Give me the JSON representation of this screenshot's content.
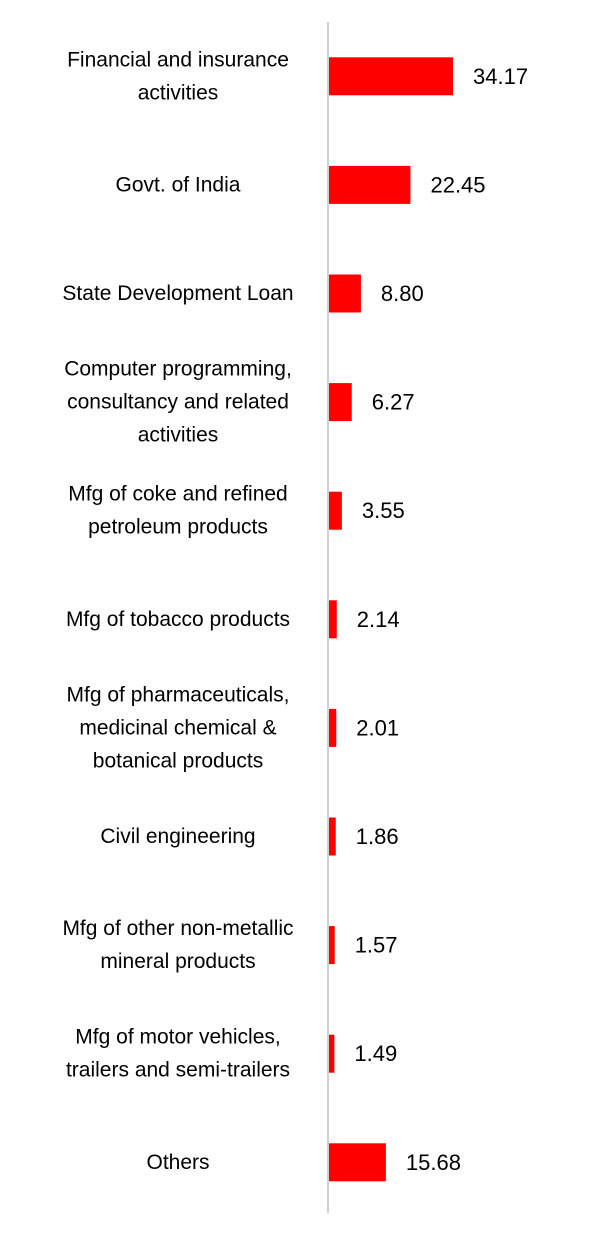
{
  "chart_data": {
    "type": "bar",
    "orientation": "horizontal",
    "categories": [
      [
        "Financial and insurance",
        "activities"
      ],
      [
        "Govt. of India"
      ],
      [
        "State Development Loan"
      ],
      [
        "Computer programming,",
        "consultancy and related",
        "activities"
      ],
      [
        "Mfg of coke and refined",
        "petroleum products"
      ],
      [
        "Mfg of tobacco products"
      ],
      [
        "Mfg of pharmaceuticals,",
        "medicinal chemical &",
        "botanical products"
      ],
      [
        "Civil engineering"
      ],
      [
        "Mfg of other non-metallic",
        "mineral products"
      ],
      [
        "Mfg of motor vehicles,",
        "trailers and semi-trailers"
      ],
      [
        "Others"
      ]
    ],
    "values": [
      34.17,
      22.45,
      8.8,
      6.27,
      3.55,
      2.14,
      2.01,
      1.86,
      1.57,
      1.49,
      15.68
    ],
    "value_labels": [
      "34.17",
      "22.45",
      "8.80",
      "6.27",
      "3.55",
      "2.14",
      "2.01",
      "1.86",
      "1.57",
      "1.49",
      "15.68"
    ],
    "bar_color": "#ff0000",
    "axis_color": "#d0d0d0",
    "xlim": [
      0,
      34.17
    ],
    "grid": false,
    "legend": "none"
  }
}
